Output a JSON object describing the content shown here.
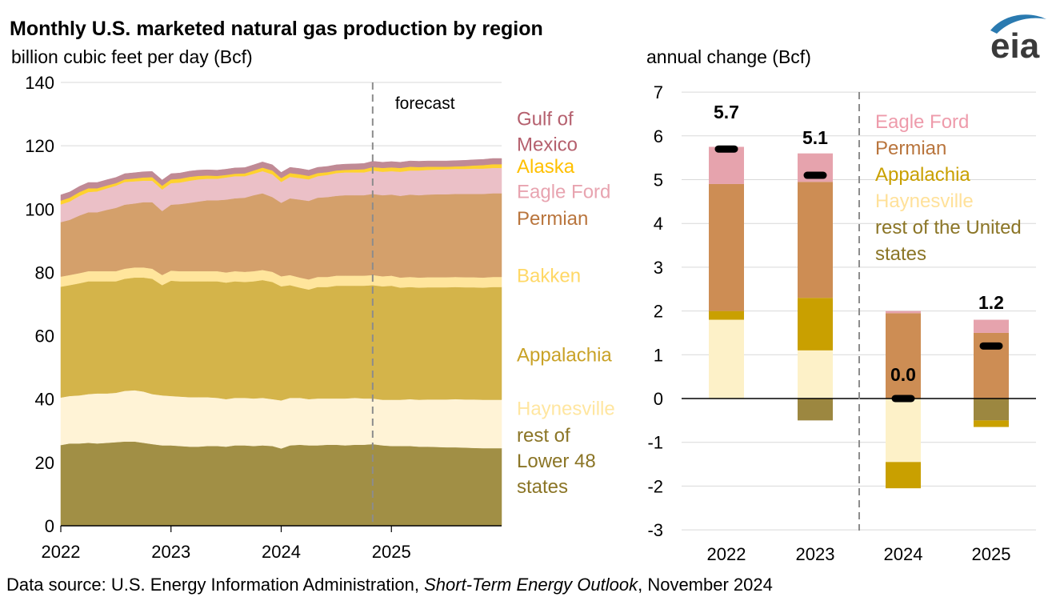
{
  "title": "Monthly U.S. marketed natural gas production by region",
  "source": {
    "prefix": "Data source: U.S. Energy Information Administration, ",
    "report": "Short-Term Energy Outlook",
    "suffix": ", November 2024"
  },
  "logo": {
    "text": "eia",
    "icon": "eia-logo-icon"
  },
  "chart_data": [
    {
      "type": "area",
      "stacked": true,
      "ylabel": "billion cubic feet per day (Bcf)",
      "xlim": [
        2022.0,
        2026.0
      ],
      "ylim": [
        0,
        140
      ],
      "yticks": [
        0,
        20,
        40,
        60,
        80,
        100,
        120,
        140
      ],
      "xticks": [
        2022,
        2023,
        2024,
        2025
      ],
      "grid": true,
      "forecast_start": 2024.83,
      "annotation": "forecast",
      "x": [
        2022.0,
        2022.08,
        2022.17,
        2022.25,
        2022.33,
        2022.42,
        2022.5,
        2022.58,
        2022.67,
        2022.75,
        2022.83,
        2022.92,
        2023.0,
        2023.08,
        2023.17,
        2023.25,
        2023.33,
        2023.42,
        2023.5,
        2023.58,
        2023.67,
        2023.75,
        2023.83,
        2023.92,
        2024.0,
        2024.08,
        2024.17,
        2024.25,
        2024.33,
        2024.42,
        2024.5,
        2024.58,
        2024.67,
        2024.75,
        2024.83,
        2024.92,
        2025.0,
        2025.08,
        2025.17,
        2025.25,
        2025.33,
        2025.42,
        2025.5,
        2025.58,
        2025.67,
        2025.75,
        2025.83,
        2025.92
      ],
      "series": [
        {
          "name": "rest of Lower 48 states",
          "color": "#a18f45",
          "values": [
            25.5,
            26.0,
            26.0,
            26.2,
            26.0,
            26.2,
            26.4,
            26.6,
            26.6,
            26.2,
            25.8,
            25.4,
            25.4,
            25.2,
            25.0,
            25.0,
            25.2,
            25.2,
            25.0,
            25.4,
            25.4,
            25.2,
            25.4,
            25.2,
            24.4,
            25.4,
            25.6,
            25.4,
            25.4,
            25.6,
            25.6,
            25.4,
            25.6,
            25.6,
            25.8,
            25.4,
            25.2,
            25.2,
            25.2,
            25.0,
            25.0,
            24.9,
            24.8,
            24.8,
            24.7,
            24.6,
            24.5,
            24.5
          ]
        },
        {
          "name": "Haynesville",
          "color": "#fff3d6",
          "values": [
            15.0,
            15.0,
            15.2,
            15.4,
            15.8,
            15.6,
            15.6,
            16.0,
            16.2,
            16.2,
            15.8,
            15.8,
            15.6,
            15.6,
            15.6,
            15.6,
            15.4,
            15.2,
            15.0,
            15.0,
            15.0,
            15.0,
            15.0,
            14.8,
            15.2,
            15.0,
            14.8,
            14.6,
            14.8,
            14.6,
            14.6,
            14.8,
            14.8,
            14.6,
            14.4,
            14.4,
            14.6,
            14.6,
            14.8,
            14.8,
            14.9,
            15.0,
            15.1,
            15.2,
            15.2,
            15.3,
            15.3,
            15.3
          ]
        },
        {
          "name": "Appalachia",
          "color": "#d4b44a",
          "values": [
            35.0,
            35.0,
            35.4,
            35.6,
            35.4,
            35.4,
            35.2,
            35.4,
            35.6,
            36.0,
            36.4,
            34.8,
            36.4,
            36.4,
            36.6,
            36.6,
            36.6,
            36.8,
            36.8,
            36.8,
            36.6,
            37.0,
            37.2,
            37.0,
            36.0,
            35.6,
            34.8,
            34.6,
            35.2,
            35.2,
            35.6,
            35.6,
            35.4,
            35.6,
            35.8,
            35.8,
            36.0,
            35.4,
            35.4,
            35.4,
            35.4,
            35.4,
            35.4,
            35.4,
            35.4,
            35.4,
            35.4,
            35.6
          ]
        },
        {
          "name": "Bakken",
          "color": "#ffe59c",
          "values": [
            3.2,
            3.2,
            3.2,
            3.2,
            3.2,
            3.2,
            3.2,
            3.2,
            3.2,
            3.2,
            3.2,
            3.2,
            3.2,
            3.2,
            3.2,
            3.2,
            3.2,
            3.2,
            3.2,
            3.2,
            3.2,
            3.2,
            3.2,
            3.2,
            3.2,
            3.2,
            3.2,
            3.2,
            3.2,
            3.2,
            3.2,
            3.2,
            3.2,
            3.2,
            3.2,
            3.2,
            3.2,
            3.2,
            3.2,
            3.2,
            3.2,
            3.2,
            3.2,
            3.2,
            3.2,
            3.2,
            3.2,
            3.2
          ]
        },
        {
          "name": "Permian",
          "color": "#d4a06b",
          "values": [
            17.2,
            17.4,
            18.2,
            18.6,
            18.6,
            19.4,
            20.0,
            20.2,
            20.2,
            20.6,
            21.0,
            20.2,
            20.8,
            21.2,
            21.6,
            22.0,
            22.4,
            22.4,
            23.0,
            23.0,
            23.4,
            24.0,
            24.2,
            23.6,
            23.2,
            24.2,
            24.6,
            24.8,
            25.0,
            25.2,
            25.2,
            25.4,
            25.4,
            25.4,
            25.6,
            25.6,
            25.6,
            25.8,
            26.0,
            26.0,
            26.1,
            26.2,
            26.2,
            26.2,
            26.3,
            26.3,
            26.4,
            26.4
          ]
        },
        {
          "name": "Eagle Ford",
          "color": "#ebc0c7",
          "values": [
            5.6,
            5.8,
            6.2,
            6.4,
            6.6,
            6.8,
            7.0,
            7.2,
            7.0,
            6.8,
            6.8,
            6.8,
            6.8,
            6.8,
            7.0,
            7.0,
            6.8,
            6.8,
            7.0,
            7.0,
            6.8,
            6.8,
            7.0,
            7.2,
            6.6,
            6.8,
            6.8,
            6.8,
            6.8,
            7.0,
            7.2,
            7.2,
            7.2,
            7.2,
            7.4,
            7.4,
            7.4,
            7.6,
            7.6,
            7.8,
            7.8,
            7.8,
            7.9,
            7.9,
            7.9,
            8.0,
            8.0,
            8.0
          ]
        },
        {
          "name": "Alaska",
          "color": "#ffd22e",
          "values": [
            1.2,
            1.2,
            1.2,
            1.2,
            1.0,
            0.9,
            0.8,
            0.8,
            0.9,
            1.0,
            1.1,
            1.2,
            1.2,
            1.2,
            1.2,
            1.1,
            1.0,
            0.9,
            0.8,
            0.8,
            0.9,
            1.0,
            1.1,
            1.2,
            1.2,
            1.2,
            1.2,
            1.1,
            1.0,
            0.9,
            0.8,
            0.8,
            0.9,
            1.0,
            1.1,
            1.2,
            1.2,
            1.2,
            1.2,
            1.1,
            1.0,
            0.9,
            0.8,
            0.8,
            0.9,
            1.0,
            1.1,
            1.2
          ]
        },
        {
          "name": "Gulf of Mexico",
          "color": "#c08a95",
          "values": [
            1.8,
            1.8,
            1.8,
            1.8,
            1.8,
            1.8,
            1.8,
            1.8,
            1.8,
            1.8,
            1.8,
            1.8,
            1.8,
            1.8,
            1.8,
            1.8,
            1.8,
            1.8,
            1.8,
            1.8,
            1.8,
            1.8,
            1.8,
            1.8,
            1.8,
            1.8,
            1.8,
            1.8,
            1.8,
            1.8,
            1.8,
            1.8,
            1.8,
            1.8,
            1.8,
            1.8,
            1.8,
            1.8,
            1.8,
            1.8,
            1.8,
            1.8,
            1.8,
            1.8,
            1.8,
            1.8,
            1.8,
            1.8
          ]
        }
      ],
      "legend": [
        {
          "lines": [
            "Gulf of",
            "Mexico"
          ],
          "color": "#b5606e",
          "y": 124.5
        },
        {
          "lines": [
            "Alaska"
          ],
          "color": "#ffc000",
          "y": 113.5
        },
        {
          "lines": [
            "Eagle Ford"
          ],
          "color": "#e8a4b0",
          "y": 105.5
        },
        {
          "lines": [
            "Permian"
          ],
          "color": "#b9753d",
          "y": 97.0
        },
        {
          "lines": [
            "Bakken"
          ],
          "color": "#ffd866",
          "y": 79.0
        },
        {
          "lines": [
            "Appalachia"
          ],
          "color": "#c9a227",
          "y": 54.0
        },
        {
          "lines": [
            "Haynesville"
          ],
          "color": "#ffe6a0",
          "y": 37.0
        },
        {
          "lines": [
            "rest of",
            "Lower 48",
            "states"
          ],
          "color": "#8b7526",
          "y": 20.5
        }
      ]
    },
    {
      "type": "bar",
      "stacked": true,
      "ylabel": "annual change (Bcf)",
      "categories": [
        "2022",
        "2023",
        "2024",
        "2025"
      ],
      "ylim": [
        -3,
        7
      ],
      "yticks": [
        -3,
        -2,
        -1,
        0,
        1,
        2,
        3,
        4,
        5,
        6,
        7
      ],
      "grid": true,
      "forecast_divider": "between 2023 and 2024",
      "series": [
        {
          "name": "rest of the United states",
          "color": "#9c8740",
          "values": [
            0.0,
            -0.5,
            0.0,
            -0.5
          ]
        },
        {
          "name": "Haynesville",
          "color": "#fdf1c8",
          "values": [
            1.8,
            1.1,
            -1.45,
            0.0
          ]
        },
        {
          "name": "Appalachia",
          "color": "#c9a000",
          "values": [
            0.2,
            1.2,
            -0.6,
            -0.15
          ]
        },
        {
          "name": "Permian",
          "color": "#cd8d54",
          "values": [
            2.9,
            2.65,
            1.95,
            1.5
          ]
        },
        {
          "name": "Eagle Ford",
          "color": "#e6a3ad",
          "values": [
            0.85,
            0.65,
            0.05,
            0.3
          ]
        }
      ],
      "totals": [
        5.7,
        5.1,
        0.0,
        1.2
      ],
      "total_labels": [
        "5.7",
        "5.1",
        "0.0",
        "1.2"
      ],
      "legend": [
        {
          "lines": [
            "Eagle Ford"
          ],
          "color": "#ee9bab"
        },
        {
          "lines": [
            "Permian"
          ],
          "color": "#b9753d"
        },
        {
          "lines": [
            "Appalachia"
          ],
          "color": "#c9a000"
        },
        {
          "lines": [
            "Haynesville"
          ],
          "color": "#ffe19a"
        },
        {
          "lines": [
            "rest of the United",
            "states"
          ],
          "color": "#8b7526"
        }
      ]
    }
  ]
}
